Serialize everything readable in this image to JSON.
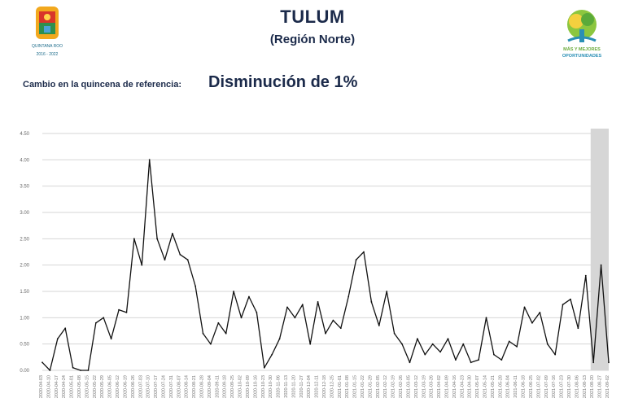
{
  "header": {
    "title": "TULUM",
    "subtitle": "(Región Norte)",
    "change_label": "Cambio en la quincena de referencia:",
    "change_value": "Disminución de 1%",
    "logo_left_text": "QUINTANA ROO",
    "logo_left_years": "2016 - 2022",
    "logo_right_text_1": "MÁS Y MEJORES",
    "logo_right_text_2": "OPORTUNIDADES"
  },
  "colors": {
    "title": "#1b2a4a",
    "line": "#111111",
    "grid": "#d6d6d6",
    "shade": "#c8c8c8"
  },
  "chart_data": {
    "type": "line",
    "title": "",
    "xlabel": "",
    "ylabel": "",
    "ylim": [
      0,
      4.5
    ],
    "yticks": [
      "0.00",
      "0.50",
      "1.00",
      "1.50",
      "2.00",
      "2.50",
      "3.00",
      "3.50",
      "4.00",
      "4.50"
    ],
    "grid": true,
    "shaded_period": [
      "2021-08-13",
      "2021-09-02"
    ],
    "x": [
      "2020-04-03",
      "2020-04-10",
      "2020-04-17",
      "2020-04-24",
      "2020-05-01",
      "2020-05-08",
      "2020-05-15",
      "2020-05-22",
      "2020-05-29",
      "2020-06-05",
      "2020-06-12",
      "2020-06-19",
      "2020-06-26",
      "2020-07-03",
      "2020-07-10",
      "2020-07-17",
      "2020-07-24",
      "2020-07-31",
      "2020-08-07",
      "2020-08-14",
      "2020-08-21",
      "2020-08-28",
      "2020-09-04",
      "2020-09-11",
      "2020-09-18",
      "2020-09-25",
      "2020-10-02",
      "2020-10-09",
      "2020-10-16",
      "2020-10-23",
      "2020-10-30",
      "2020-11-06",
      "2020-11-13",
      "2020-11-20",
      "2020-11-27",
      "2020-12-04",
      "2020-12-11",
      "2020-12-18",
      "2020-12-25",
      "2021-01-01",
      "2021-01-08",
      "2021-01-15",
      "2021-01-22",
      "2021-01-29",
      "2021-02-05",
      "2021-02-12",
      "2021-02-19",
      "2021-02-26",
      "2021-03-05",
      "2021-03-12",
      "2021-03-19",
      "2021-03-26",
      "2021-04-02",
      "2021-04-09",
      "2021-04-16",
      "2021-04-23",
      "2021-04-30",
      "2021-05-07",
      "2021-05-14",
      "2021-05-21",
      "2021-05-28",
      "2021-06-04",
      "2021-06-11",
      "2021-06-18",
      "2021-06-25",
      "2021-07-02",
      "2021-07-09",
      "2021-07-16",
      "2021-07-23",
      "2021-07-30",
      "2021-08-06",
      "2021-08-13",
      "2021-08-20",
      "2021-08-27",
      "2021-09-02"
    ],
    "values": [
      0.15,
      0.0,
      0.6,
      0.8,
      0.05,
      0.0,
      0.0,
      0.9,
      1.0,
      0.6,
      1.15,
      1.1,
      2.5,
      2.0,
      4.0,
      2.5,
      2.1,
      2.6,
      2.2,
      2.1,
      1.6,
      0.7,
      0.5,
      0.9,
      0.7,
      1.5,
      1.0,
      1.4,
      1.1,
      0.05,
      0.3,
      0.6,
      1.2,
      1.0,
      1.25,
      0.5,
      1.3,
      0.7,
      0.95,
      0.8,
      1.4,
      2.1,
      2.25,
      1.3,
      0.85,
      1.5,
      0.7,
      0.5,
      0.15,
      0.6,
      0.3,
      0.5,
      0.35,
      0.6,
      0.2,
      0.5,
      0.15,
      0.2,
      1.0,
      0.3,
      0.2,
      0.55,
      0.45,
      1.2,
      0.9,
      1.1,
      0.5,
      0.3,
      1.25,
      1.35,
      0.8,
      1.8,
      0.15,
      2.0,
      0.15
    ]
  }
}
